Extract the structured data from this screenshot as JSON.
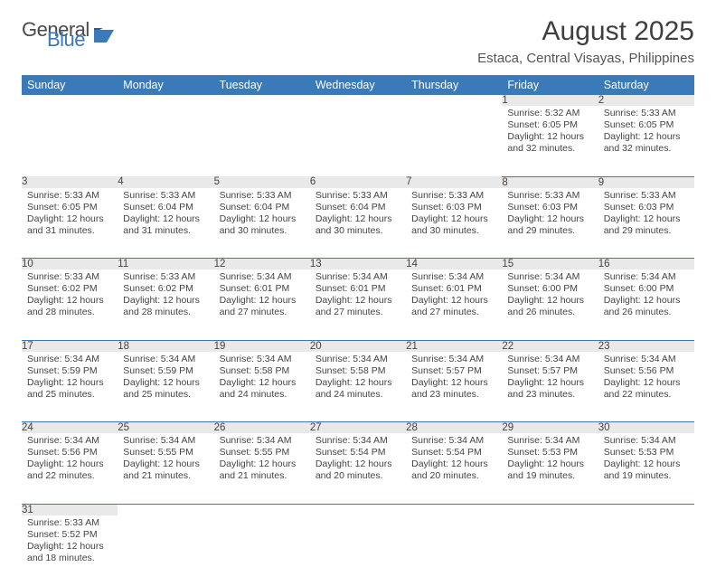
{
  "brand": {
    "part1": "General",
    "part2": "Blue"
  },
  "title": "August 2025",
  "location": "Estaca, Central Visayas, Philippines",
  "colors": {
    "header_bg": "#3a7ab8",
    "header_fg": "#ffffff",
    "daynum_bg": "#e9e9e9",
    "border": "#3a7ab8",
    "text": "#444444"
  },
  "weekdays": [
    "Sunday",
    "Monday",
    "Tuesday",
    "Wednesday",
    "Thursday",
    "Friday",
    "Saturday"
  ],
  "weeks": [
    [
      null,
      null,
      null,
      null,
      null,
      {
        "n": "1",
        "sr": "5:32 AM",
        "ss": "6:05 PM",
        "dl": "12 hours and 32 minutes."
      },
      {
        "n": "2",
        "sr": "5:33 AM",
        "ss": "6:05 PM",
        "dl": "12 hours and 32 minutes."
      }
    ],
    [
      {
        "n": "3",
        "sr": "5:33 AM",
        "ss": "6:05 PM",
        "dl": "12 hours and 31 minutes."
      },
      {
        "n": "4",
        "sr": "5:33 AM",
        "ss": "6:04 PM",
        "dl": "12 hours and 31 minutes."
      },
      {
        "n": "5",
        "sr": "5:33 AM",
        "ss": "6:04 PM",
        "dl": "12 hours and 30 minutes."
      },
      {
        "n": "6",
        "sr": "5:33 AM",
        "ss": "6:04 PM",
        "dl": "12 hours and 30 minutes."
      },
      {
        "n": "7",
        "sr": "5:33 AM",
        "ss": "6:03 PM",
        "dl": "12 hours and 30 minutes."
      },
      {
        "n": "8",
        "sr": "5:33 AM",
        "ss": "6:03 PM",
        "dl": "12 hours and 29 minutes."
      },
      {
        "n": "9",
        "sr": "5:33 AM",
        "ss": "6:03 PM",
        "dl": "12 hours and 29 minutes."
      }
    ],
    [
      {
        "n": "10",
        "sr": "5:33 AM",
        "ss": "6:02 PM",
        "dl": "12 hours and 28 minutes."
      },
      {
        "n": "11",
        "sr": "5:33 AM",
        "ss": "6:02 PM",
        "dl": "12 hours and 28 minutes."
      },
      {
        "n": "12",
        "sr": "5:34 AM",
        "ss": "6:01 PM",
        "dl": "12 hours and 27 minutes."
      },
      {
        "n": "13",
        "sr": "5:34 AM",
        "ss": "6:01 PM",
        "dl": "12 hours and 27 minutes."
      },
      {
        "n": "14",
        "sr": "5:34 AM",
        "ss": "6:01 PM",
        "dl": "12 hours and 27 minutes."
      },
      {
        "n": "15",
        "sr": "5:34 AM",
        "ss": "6:00 PM",
        "dl": "12 hours and 26 minutes."
      },
      {
        "n": "16",
        "sr": "5:34 AM",
        "ss": "6:00 PM",
        "dl": "12 hours and 26 minutes."
      }
    ],
    [
      {
        "n": "17",
        "sr": "5:34 AM",
        "ss": "5:59 PM",
        "dl": "12 hours and 25 minutes."
      },
      {
        "n": "18",
        "sr": "5:34 AM",
        "ss": "5:59 PM",
        "dl": "12 hours and 25 minutes."
      },
      {
        "n": "19",
        "sr": "5:34 AM",
        "ss": "5:58 PM",
        "dl": "12 hours and 24 minutes."
      },
      {
        "n": "20",
        "sr": "5:34 AM",
        "ss": "5:58 PM",
        "dl": "12 hours and 24 minutes."
      },
      {
        "n": "21",
        "sr": "5:34 AM",
        "ss": "5:57 PM",
        "dl": "12 hours and 23 minutes."
      },
      {
        "n": "22",
        "sr": "5:34 AM",
        "ss": "5:57 PM",
        "dl": "12 hours and 23 minutes."
      },
      {
        "n": "23",
        "sr": "5:34 AM",
        "ss": "5:56 PM",
        "dl": "12 hours and 22 minutes."
      }
    ],
    [
      {
        "n": "24",
        "sr": "5:34 AM",
        "ss": "5:56 PM",
        "dl": "12 hours and 22 minutes."
      },
      {
        "n": "25",
        "sr": "5:34 AM",
        "ss": "5:55 PM",
        "dl": "12 hours and 21 minutes."
      },
      {
        "n": "26",
        "sr": "5:34 AM",
        "ss": "5:55 PM",
        "dl": "12 hours and 21 minutes."
      },
      {
        "n": "27",
        "sr": "5:34 AM",
        "ss": "5:54 PM",
        "dl": "12 hours and 20 minutes."
      },
      {
        "n": "28",
        "sr": "5:34 AM",
        "ss": "5:54 PM",
        "dl": "12 hours and 20 minutes."
      },
      {
        "n": "29",
        "sr": "5:34 AM",
        "ss": "5:53 PM",
        "dl": "12 hours and 19 minutes."
      },
      {
        "n": "30",
        "sr": "5:34 AM",
        "ss": "5:53 PM",
        "dl": "12 hours and 19 minutes."
      }
    ],
    [
      {
        "n": "31",
        "sr": "5:33 AM",
        "ss": "5:52 PM",
        "dl": "12 hours and 18 minutes."
      },
      null,
      null,
      null,
      null,
      null,
      null
    ]
  ],
  "labels": {
    "sunrise": "Sunrise: ",
    "sunset": "Sunset: ",
    "daylight": "Daylight: "
  }
}
